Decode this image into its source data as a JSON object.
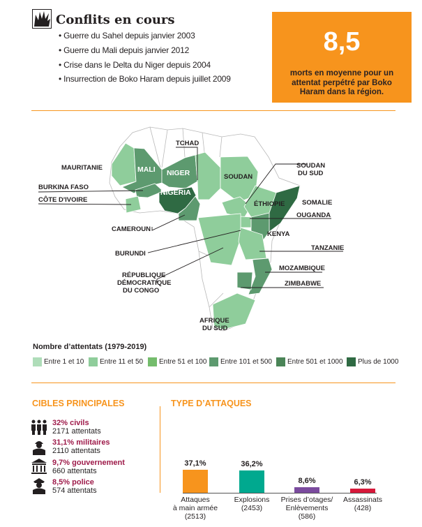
{
  "header": {
    "icon": "explosion-icon",
    "title": "Conflits en cours",
    "bullets": [
      "• Guerre du Sahel depuis janvier 2003",
      "• Guerre du Mali depuis janvier 2012",
      "• Crise dans le Delta du Niger depuis 2004",
      "• Insurrection de Boko Haram depuis juillet 2009"
    ]
  },
  "stat": {
    "value": "8,5",
    "text": "morts en moyenne pour un attentat perpétré par Boko Haram dans la région.",
    "color": "#f7941d"
  },
  "map": {
    "labels": {
      "mauritanie": "MAURITANIE",
      "mali": "MALI",
      "niger": "NIGER",
      "tchad": "TCHAD",
      "nigeria": "NIGERIA",
      "burkina": "BURKINA FASO",
      "cote": "CÔTE D'IVOIRE",
      "cameroun": "CAMEROUN",
      "soudan": "SOUDAN",
      "soudan_sud_1": "SOUDAN",
      "soudan_sud_2": "DU SUD",
      "ethiopie": "ÉTHIOPIE",
      "somalie": "SOMALIE",
      "ouganda": "OUGANDA",
      "kenya": "KENYA",
      "burundi": "BURUNDI",
      "tanzanie": "TANZANIE",
      "rdc_1": "RÉPUBLIQUE",
      "rdc_2": "DÉMOCRATIQUE",
      "rdc_3": "DU CONGO",
      "mozambique": "MOZAMBIQUE",
      "zimbabwe": "ZIMBABWE",
      "afs_1": "AFRIQUE",
      "afs_2": "DU SUD"
    },
    "legend_title": "Nombre d’attentats (1979-2019)",
    "legend": [
      {
        "label": "Entre 1 et 10",
        "color": "#afddb9"
      },
      {
        "label": "Entre 11 et 50",
        "color": "#8fcd9b"
      },
      {
        "label": "Entre 51 et 100",
        "color": "#74bc6c"
      },
      {
        "label": "Entre 101 et 500",
        "color": "#5d9a6f"
      },
      {
        "label": "Entre 501 et 1000",
        "color": "#4a8457"
      },
      {
        "label": "Plus de 1000",
        "color": "#2f6a43"
      }
    ]
  },
  "targets": {
    "title": "CIBLES PRINCIPALES",
    "items": [
      {
        "icon": "civilians-icon",
        "pct": "32% civils",
        "count": "2171 attentats"
      },
      {
        "icon": "soldier-icon",
        "pct": "31,1% militaires",
        "count": "2110 attentats"
      },
      {
        "icon": "government-building-icon",
        "pct": "9,7% gouvernement",
        "count": "660 attentats"
      },
      {
        "icon": "police-officer-icon",
        "pct": "8,5% police",
        "count": "574 attentats"
      }
    ]
  },
  "chart_data": {
    "type": "bar",
    "title": "TYPE D’ATTAQUES",
    "categories": [
      "Attaques à main armée (2513)",
      "Explosions (2453)",
      "Prises d’otages/ Enlèvements (586)",
      "Assassinats (428)"
    ],
    "category_lines": [
      [
        "Attaques",
        "à main armée",
        "(2513)"
      ],
      [
        "Explosions",
        "(2453)"
      ],
      [
        "Prises d’otages/",
        "Enlèvements",
        "(586)"
      ],
      [
        "Assassinats",
        "(428)"
      ]
    ],
    "values": [
      37.1,
      36.2,
      8.6,
      6.3
    ],
    "value_labels": [
      "37,1%",
      "36,2%",
      "8,6%",
      "6,3%"
    ],
    "colors": [
      "#f7941d",
      "#00a98f",
      "#7b4b9e",
      "#d7183a"
    ],
    "ylim": [
      0,
      40
    ]
  }
}
